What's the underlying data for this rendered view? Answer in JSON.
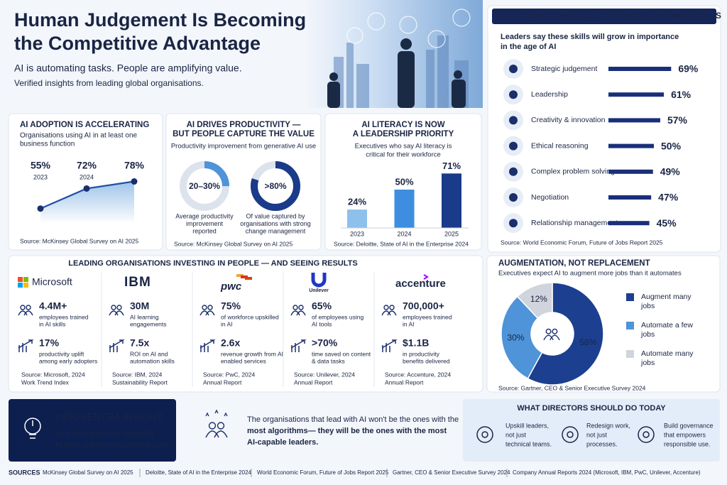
{
  "header": {
    "title_line1": "Human Judgement Is Becoming",
    "title_line2": "the Competitive Advantage",
    "subtitle": "AI is automating tasks. People are amplifying value.",
    "note": "Verified insights from leading global organisations."
  },
  "skills": {
    "title": "AI IS RAISING THE VALUE OF UNIQUELY HUMAN SKILLS",
    "subtitle_line1": "Leaders say these skills will grow in importance",
    "subtitle_line2": "in the age of AI",
    "color": "#1a2f7a",
    "items": [
      {
        "name": "Strategic judgement",
        "value": 69,
        "label": "69%"
      },
      {
        "name": "Leadership",
        "value": 61,
        "label": "61%"
      },
      {
        "name": "Creativity & innovation",
        "value": 57,
        "label": "57%"
      },
      {
        "name": "Ethical reasoning",
        "value": 50,
        "label": "50%"
      },
      {
        "name": "Complex problem solving",
        "value": 49,
        "label": "49%"
      },
      {
        "name": "Negotiation",
        "value": 47,
        "label": "47%"
      },
      {
        "name": "Relationship management",
        "value": 45,
        "label": "45%"
      }
    ],
    "source": "Source: World Economic Forum, Future of Jobs Report 2025"
  },
  "adoption": {
    "title": "AI ADOPTION IS ACCELERATING",
    "subtitle_line1": "Organisations using AI in at least one",
    "subtitle_line2": "business function",
    "years": [
      "2023",
      "2024",
      null
    ],
    "values": [
      55,
      72,
      78
    ],
    "value_labels": [
      "55%",
      "72%",
      "78%"
    ],
    "color": "#1f4fa8",
    "source": "Source: McKinsey Global Survey on AI 2025"
  },
  "productivity": {
    "title_line1": "AI DRIVES PRODUCTIVITY —",
    "title_line2": "BUT PEOPLE CAPTURE THE VALUE",
    "subtitle": "Productivity improvement from generative AI use",
    "donuts": [
      {
        "value": 25,
        "label": "20–30%",
        "color": "#4f93d8",
        "desc": [
          "Average productivity",
          "improvement",
          "reported"
        ]
      },
      {
        "value": 80,
        "label": ">80%",
        "color": "#1a3a8a",
        "desc": [
          "Of value captured by",
          "organisations with strong",
          "change management"
        ]
      }
    ],
    "source": "Source: McKinsey Global Survey on AI 2025"
  },
  "literacy": {
    "title_line1": "AI LITERACY IS NOW",
    "title_line2": "A LEADERSHIP PRIORITY",
    "subtitle_line1": "Executives who say AI literacy is",
    "subtitle_line2": "critical for their workforce",
    "categories": [
      "2023",
      "2024",
      "2025"
    ],
    "values": [
      24,
      50,
      71
    ],
    "value_labels": [
      "24%",
      "50%",
      "71%"
    ],
    "colors": [
      "#8ec0ec",
      "#3d8ee0",
      "#1a3a8a"
    ],
    "source": "Source: Deloitte, State of AI in the Enterprise 2024"
  },
  "organisations": {
    "title": "LEADING ORGANISATIONS INVESTING IN PEOPLE — AND SEEING RESULTS",
    "companies": [
      {
        "name": "Microsoft",
        "stat1": "4.4M+",
        "desc1": [
          "employees trained",
          "in AI skills"
        ],
        "stat2": "17%",
        "desc2": [
          "productivity uplift",
          "among early adopters"
        ],
        "source": [
          "Source: Microsoft, 2024",
          "Work Trend Index"
        ]
      },
      {
        "name": "IBM",
        "stat1": "30M",
        "desc1": [
          "AI learning",
          "engagements"
        ],
        "stat2": "7.5x",
        "desc2": [
          "ROI on AI and",
          "automation skills"
        ],
        "source": [
          "Source: IBM, 2024",
          "Sustainability Report"
        ]
      },
      {
        "name": "pwc",
        "stat1": "75%",
        "desc1": [
          "of workforce upskilled",
          "in AI"
        ],
        "stat2": "2.6x",
        "desc2": [
          "revenue growth from AI",
          "enabled services"
        ],
        "source": [
          "Source: PwC, 2024",
          "Annual Report"
        ]
      },
      {
        "name": "Unilever",
        "stat1": "65%",
        "desc1": [
          "of employees using",
          "AI tools"
        ],
        "stat2": ">70%",
        "desc2": [
          "time saved on content",
          "& data tasks"
        ],
        "source": [
          "Source: Unilever, 2024",
          "Annual Report"
        ]
      },
      {
        "name": "accenture",
        "stat1": "700,000+",
        "desc1": [
          "employees trained",
          "in AI"
        ],
        "stat2": "$1.1B",
        "desc2": [
          "in productivity",
          "benefits delivered"
        ],
        "source": [
          "Source: Accenture, 2024",
          "Annual Report"
        ]
      }
    ]
  },
  "augmentation": {
    "title": "AUGMENTATION, NOT REPLACEMENT",
    "subtitle": "Executives expect AI to augment more jobs than it automates",
    "segments": [
      {
        "name": [
          "Augment many",
          "jobs"
        ],
        "value": 58,
        "label": "58%",
        "color": "#1d3f8f"
      },
      {
        "name": [
          "Automate a few",
          "jobs"
        ],
        "value": 30,
        "label": "30%",
        "color": "#4f93d8"
      },
      {
        "name": [
          "Automate many",
          "jobs"
        ],
        "value": 12,
        "label": "12%",
        "color": "#d0d4dc"
      }
    ],
    "source": "Source: Gartner, CEO & Senior Executive Survey 2024"
  },
  "insight": {
    "title": "INNOVENTRA INSIGHT",
    "lines": [
      "AI scales technical capability.",
      "Human judgement scales impact."
    ]
  },
  "quote": {
    "lines": [
      "The organisations that lead with AI won't be the ones with the",
      "most algorithms— they will be the ones with the most",
      "AI-capable leaders."
    ]
  },
  "directors": {
    "title": "WHAT DIRECTORS SHOULD DO TODAY",
    "actions": [
      [
        "Upskill leaders,",
        "not just",
        "technical teams."
      ],
      [
        "Redesign work,",
        "not just",
        "processes."
      ],
      [
        "Build governance",
        "that empowers",
        "responsible use."
      ]
    ]
  },
  "sources": {
    "label": "SOURCES",
    "items": [
      "McKinsey Global Survey on AI 2025",
      "Deloitte, State of AI in the Enterprise 2024",
      "World Economic Forum, Future of Jobs Report 2025",
      "Gartner, CEO & Senior Executive Survey 2024",
      "Company Annual Reports 2024 (Microsoft, IBM, PwC, Unilever, Accenture)"
    ]
  }
}
